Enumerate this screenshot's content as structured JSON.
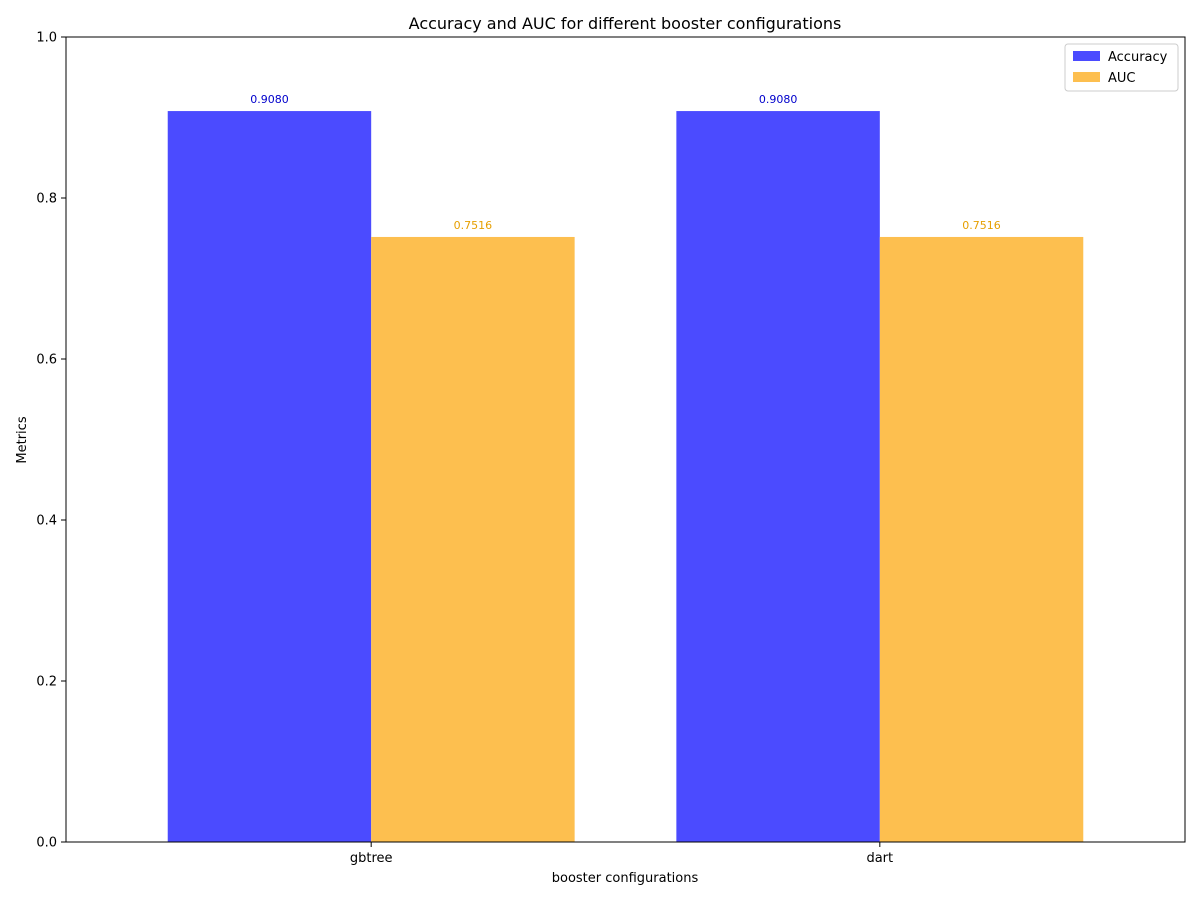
{
  "chart_data": {
    "type": "bar",
    "title": "Accuracy and AUC for different booster configurations",
    "xlabel": "booster configurations",
    "ylabel": "Metrics",
    "categories": [
      "gbtree",
      "dart"
    ],
    "series": [
      {
        "name": "Accuracy",
        "values": [
          0.908,
          0.908
        ],
        "labels": [
          "0.9080",
          "0.9080"
        ],
        "color": "#4b4bff"
      },
      {
        "name": "AUC",
        "values": [
          0.7516,
          0.7516
        ],
        "labels": [
          "0.7516",
          "0.7516"
        ],
        "color": "#fdbf4f"
      }
    ],
    "label_colors": [
      "#0000cc",
      "#e69f00"
    ],
    "ylim": [
      0,
      1.0
    ],
    "yticks": [
      0.0,
      0.2,
      0.4,
      0.6,
      0.8,
      1.0
    ],
    "ytick_labels": [
      "0.0",
      "0.2",
      "0.4",
      "0.6",
      "0.8",
      "1.0"
    ],
    "grid": false,
    "legend_position": "top-right"
  }
}
